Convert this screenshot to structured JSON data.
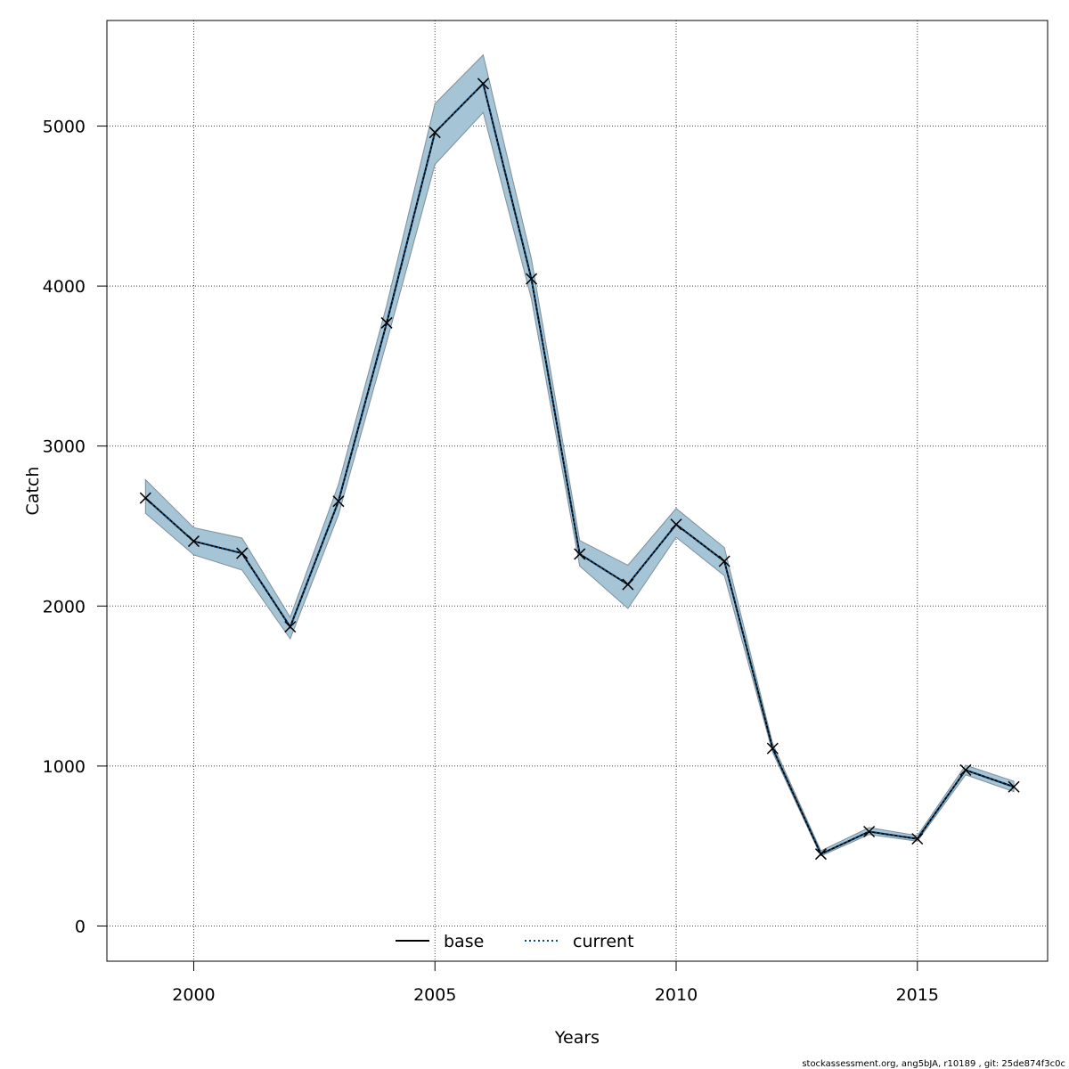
{
  "chart_data": {
    "type": "line",
    "xlabel": "Years",
    "ylabel": "Catch",
    "xlim": [
      1998.2,
      2017.7
    ],
    "ylim": [
      -220,
      5660
    ],
    "x_ticks": [
      2000,
      2005,
      2010,
      2015
    ],
    "y_ticks": [
      0,
      1000,
      2000,
      3000,
      4000,
      5000
    ],
    "grid": true,
    "legend_position": "bottom-center",
    "x": [
      1999,
      2000,
      2001,
      2002,
      2003,
      2004,
      2005,
      2006,
      2007,
      2008,
      2009,
      2010,
      2011,
      2012,
      2013,
      2014,
      2015,
      2016,
      2017
    ],
    "series": [
      {
        "name": "base",
        "style": "solid",
        "color": "#000000",
        "values": [
          2675,
          2405,
          2330,
          1870,
          2655,
          3770,
          4960,
          5265,
          4045,
          2325,
          2135,
          2510,
          2280,
          1110,
          450,
          590,
          545,
          975,
          870
        ]
      },
      {
        "name": "current",
        "style": "dotted",
        "color": "#00508C",
        "values": [
          2675,
          2405,
          2330,
          1870,
          2655,
          3770,
          4960,
          5265,
          4045,
          2325,
          2135,
          2510,
          2280,
          1110,
          450,
          590,
          545,
          975,
          870
        ]
      }
    ],
    "band": {
      "color": "#A5C5D6",
      "lower": [
        2580,
        2320,
        2225,
        1795,
        2570,
        3650,
        4760,
        5085,
        3920,
        2250,
        1985,
        2430,
        2190,
        1085,
        438,
        572,
        530,
        945,
        840
      ],
      "upper": [
        2790,
        2490,
        2425,
        1930,
        2760,
        3880,
        5140,
        5445,
        4170,
        2410,
        2255,
        2610,
        2365,
        1140,
        470,
        615,
        565,
        1005,
        905
      ]
    }
  },
  "footer": "stockassessment.org, ang5bJA, r10189 , git: 25de874f3c0c"
}
